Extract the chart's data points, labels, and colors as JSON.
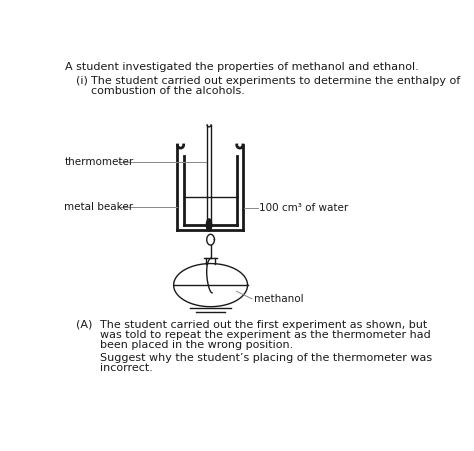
{
  "title_line1": "A student investigated the properties of methanol and ethanol.",
  "intro_label": "(i)",
  "intro_line1": "The student carried out experiments to determine the enthalpy of",
  "intro_line2": "combustion of the alcohols.",
  "label_thermometer": "thermometer",
  "label_metal_beaker": "metal beaker",
  "label_water": "100 cm³ of water",
  "label_methanol": "methanol",
  "section_A_label": "(A)",
  "section_A_line1": "The student carried out the first experiment as shown, but",
  "section_A_line2": "was told to repeat the experiment as the thermometer had",
  "section_A_line3": "been placed in the wrong position.",
  "section_A_line4": "Suggest why the student’s placing of the thermometer was",
  "section_A_line5": "incorrect.",
  "bg_color": "#ffffff",
  "text_color": "#1a1a1a",
  "line_color": "#1a1a1a"
}
